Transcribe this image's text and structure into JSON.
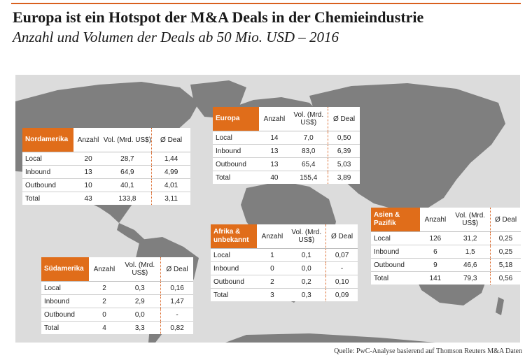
{
  "header": {
    "title": "Europa ist ein Hotspot der M&A Deals in der Chemieindustrie",
    "subtitle": "Anzahl und Volumen der Deals ab 50 Mio. USD – 2016"
  },
  "source": "Quelle: PwC-Analyse basierend auf Thomson Reuters M&A Daten",
  "colors": {
    "accent": "#e06d1a",
    "map_land": "#7f7f7f",
    "map_water": "#dcdcdc"
  },
  "chart_data": {
    "type": "table",
    "columns": [
      "Anzahl",
      "Vol. (Mrd. US$)",
      "Ø Deal"
    ],
    "tables": [
      {
        "region": "Nordamerika",
        "rows": [
          {
            "label": "Local",
            "anzahl": "20",
            "vol": "28,7",
            "avg": "1,44"
          },
          {
            "label": "Inbound",
            "anzahl": "13",
            "vol": "64,9",
            "avg": "4,99"
          },
          {
            "label": "Outbound",
            "anzahl": "10",
            "vol": "40,1",
            "avg": "4,01"
          },
          {
            "label": "Total",
            "anzahl": "43",
            "vol": "133,8",
            "avg": "3,11"
          }
        ]
      },
      {
        "region": "Europa",
        "rows": [
          {
            "label": "Local",
            "anzahl": "14",
            "vol": "7,0",
            "avg": "0,50"
          },
          {
            "label": "Inbound",
            "anzahl": "13",
            "vol": "83,0",
            "avg": "6,39"
          },
          {
            "label": "Outbound",
            "anzahl": "13",
            "vol": "65,4",
            "avg": "5,03"
          },
          {
            "label": "Total",
            "anzahl": "40",
            "vol": "155,4",
            "avg": "3,89"
          }
        ]
      },
      {
        "region": "Afrika & unbekannt",
        "rows": [
          {
            "label": "Local",
            "anzahl": "1",
            "vol": "0,1",
            "avg": "0,07"
          },
          {
            "label": "Inbound",
            "anzahl": "0",
            "vol": "0,0",
            "avg": "-"
          },
          {
            "label": "Outbound",
            "anzahl": "2",
            "vol": "0,2",
            "avg": "0,10"
          },
          {
            "label": "Total",
            "anzahl": "3",
            "vol": "0,3",
            "avg": "0,09"
          }
        ]
      },
      {
        "region": "Asien & Pazifik",
        "rows": [
          {
            "label": "Local",
            "anzahl": "126",
            "vol": "31,2",
            "avg": "0,25"
          },
          {
            "label": "Inbound",
            "anzahl": "6",
            "vol": "1,5",
            "avg": "0,25"
          },
          {
            "label": "Outbound",
            "anzahl": "9",
            "vol": "46,6",
            "avg": "5,18"
          },
          {
            "label": "Total",
            "anzahl": "141",
            "vol": "79,3",
            "avg": "0,56"
          }
        ]
      },
      {
        "region": "Südamerika",
        "rows": [
          {
            "label": "Local",
            "anzahl": "2",
            "vol": "0,3",
            "avg": "0,16"
          },
          {
            "label": "Inbound",
            "anzahl": "2",
            "vol": "2,9",
            "avg": "1,47"
          },
          {
            "label": "Outbound",
            "anzahl": "0",
            "vol": "0,0",
            "avg": "-"
          },
          {
            "label": "Total",
            "anzahl": "4",
            "vol": "3,3",
            "avg": "0,82"
          }
        ]
      }
    ]
  }
}
